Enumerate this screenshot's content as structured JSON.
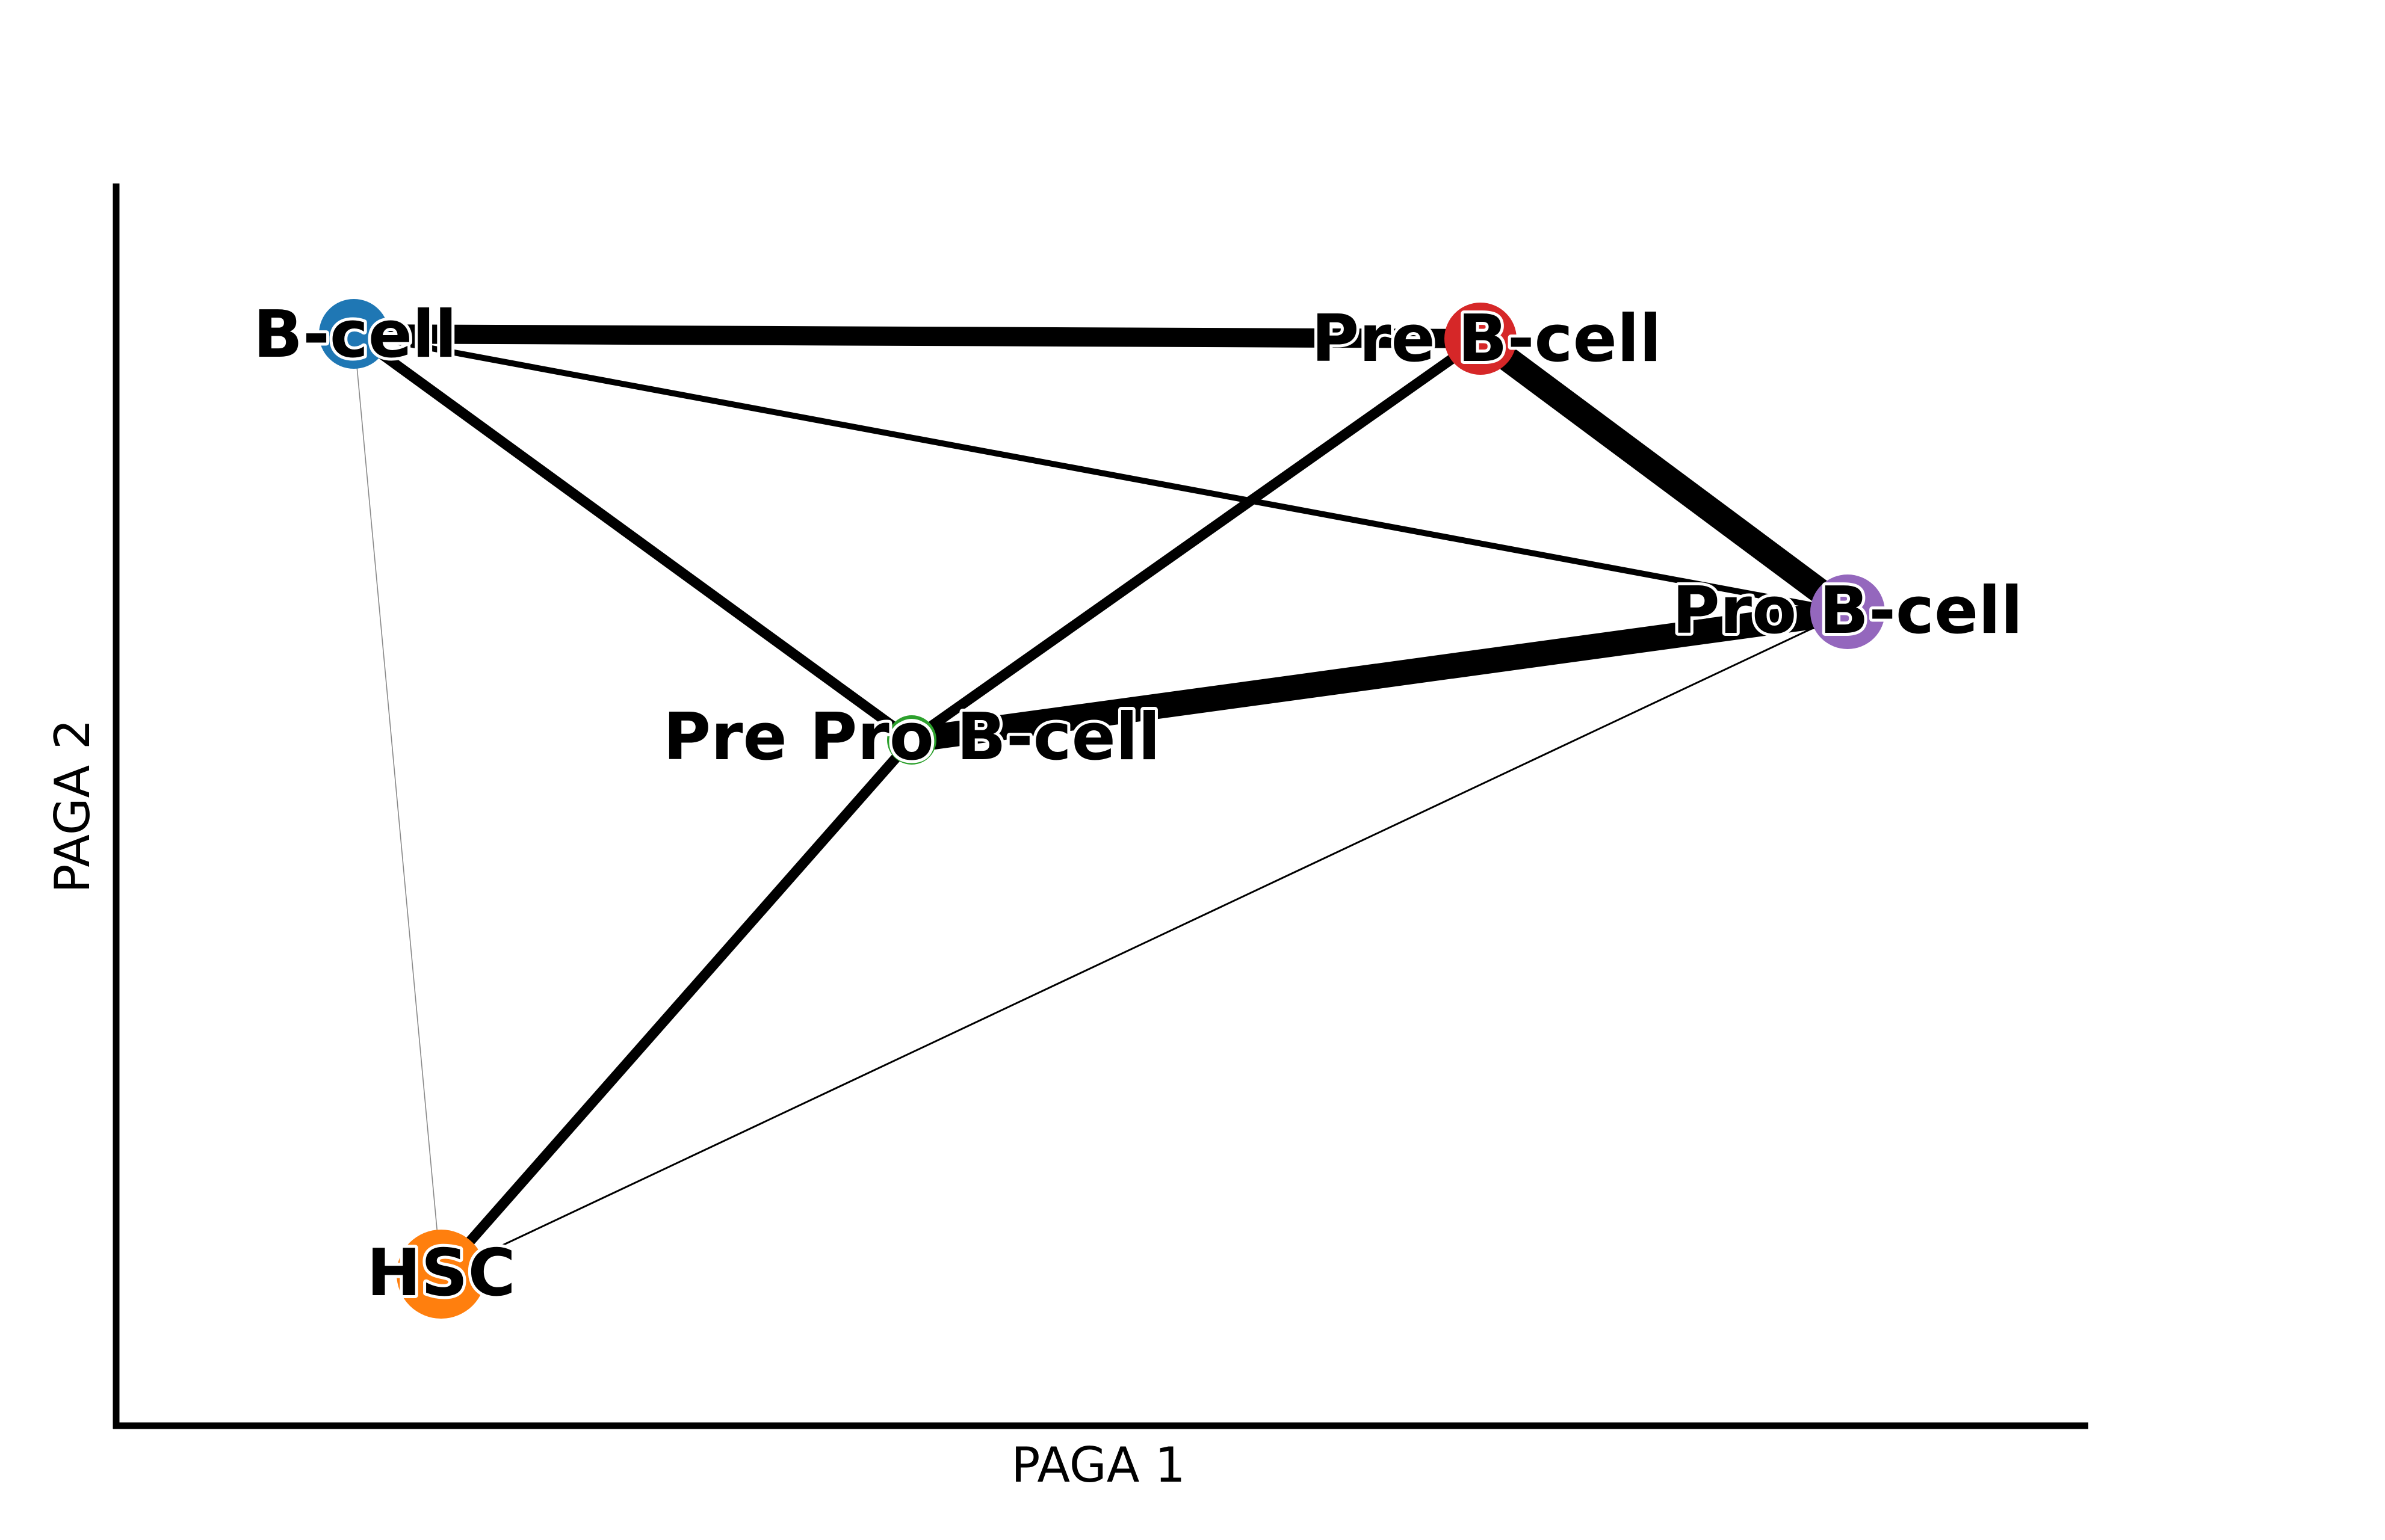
{
  "diagram": {
    "x_axis_label": "PAGA 1",
    "y_axis_label": "PAGA 2",
    "nodes": [
      {
        "id": "bcell",
        "label": "B-cell",
        "color": "#1f77b4",
        "hollow": false
      },
      {
        "id": "prebcell",
        "label": "Pre B-cell",
        "color": "#d62728",
        "hollow": false
      },
      {
        "id": "probcell",
        "label": "Pro B-cell",
        "color": "#9467bd",
        "hollow": false
      },
      {
        "id": "preprobcell",
        "label": "Pre Pro B-cell",
        "color": "#2ca02c",
        "hollow": true
      },
      {
        "id": "hsc",
        "label": "HSC",
        "color": "#ff7f0e",
        "hollow": false
      }
    ],
    "edges": [
      {
        "source": "bcell",
        "target": "prebcell",
        "weight": "heavy"
      },
      {
        "source": "prebcell",
        "target": "probcell",
        "weight": "heaviest"
      },
      {
        "source": "preprobcell",
        "target": "probcell",
        "weight": "heaviest"
      },
      {
        "source": "prebcell",
        "target": "preprobcell",
        "weight": "strong"
      },
      {
        "source": "bcell",
        "target": "preprobcell",
        "weight": "strong"
      },
      {
        "source": "preprobcell",
        "target": "hsc",
        "weight": "strong"
      },
      {
        "source": "bcell",
        "target": "probcell",
        "weight": "medium"
      },
      {
        "source": "hsc",
        "target": "probcell",
        "weight": "weak"
      },
      {
        "source": "bcell",
        "target": "hsc",
        "weight": "faint"
      }
    ]
  }
}
